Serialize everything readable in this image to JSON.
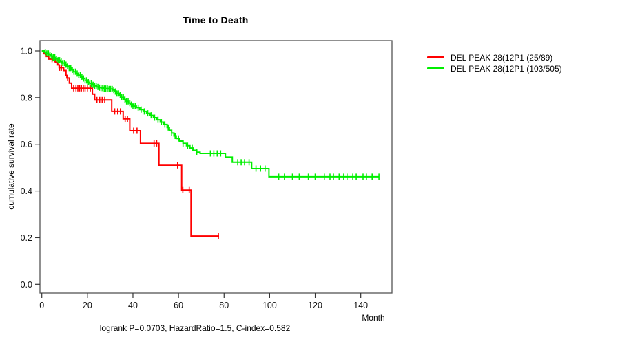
{
  "chart_data": {
    "type": "line",
    "subtype": "kaplan-meier-step",
    "title": "Time to Death",
    "xlabel": "Month",
    "ylabel": "cumulative survival rate",
    "footnote": "logrank P=0.0703, HazardRatio=1.5, C-index=0.582",
    "x_ticks": [
      0,
      20,
      40,
      60,
      80,
      100,
      120,
      140
    ],
    "y_ticks": [
      0.0,
      0.2,
      0.4,
      0.6,
      0.8,
      1.0
    ],
    "xlim": [
      0,
      154
    ],
    "ylim": [
      0.0,
      1.0
    ],
    "grid": false,
    "legend_position": "right-outside",
    "series": [
      {
        "name": "DEL PEAK 28(12P1 (25/89)",
        "color": "#ff0000",
        "events_over_n": "25/89",
        "end_month": 77.8,
        "points": [
          [
            0,
            1.0
          ],
          [
            1,
            0.988
          ],
          [
            2,
            0.976
          ],
          [
            3,
            0.965
          ],
          [
            6,
            0.952
          ],
          [
            7,
            0.94
          ],
          [
            7.6,
            0.928
          ],
          [
            9.6,
            0.916
          ],
          [
            10.6,
            0.895
          ],
          [
            11,
            0.884
          ],
          [
            12.1,
            0.862
          ],
          [
            13.1,
            0.84
          ],
          [
            22.2,
            0.815
          ],
          [
            23.2,
            0.79
          ],
          [
            30.7,
            0.741
          ],
          [
            35.7,
            0.709
          ],
          [
            38.6,
            0.658
          ],
          [
            43.3,
            0.604
          ],
          [
            51.4,
            0.51
          ],
          [
            61.4,
            0.404
          ],
          [
            65.5,
            0.207
          ]
        ],
        "censor_months": [
          4.5,
          5.5,
          7.8,
          8.6,
          11.3,
          14,
          15,
          15.8,
          16.6,
          17.4,
          18.2,
          19,
          20,
          21.3,
          24.2,
          25.4,
          26.5,
          27.6,
          32,
          33.3,
          34.5,
          36.6,
          37.6,
          40.3,
          41.8,
          49.3,
          50.4,
          59.6,
          61.9,
          64.7,
          77.5
        ]
      },
      {
        "name": "DEL PEAK 28(12P1 (103/505)",
        "color": "#00ee00",
        "events_over_n": "103/505",
        "end_month": 148,
        "points": [
          [
            0,
            1.0
          ],
          [
            1,
            0.995
          ],
          [
            2,
            0.989
          ],
          [
            3,
            0.983
          ],
          [
            4,
            0.978
          ],
          [
            5,
            0.972
          ],
          [
            6,
            0.966
          ],
          [
            7,
            0.96
          ],
          [
            8,
            0.954
          ],
          [
            9,
            0.948
          ],
          [
            10,
            0.941
          ],
          [
            11,
            0.934
          ],
          [
            12,
            0.927
          ],
          [
            13,
            0.919
          ],
          [
            14,
            0.911
          ],
          [
            15,
            0.903
          ],
          [
            16,
            0.896
          ],
          [
            17,
            0.889
          ],
          [
            18,
            0.882
          ],
          [
            19,
            0.874
          ],
          [
            20,
            0.866
          ],
          [
            21,
            0.86
          ],
          [
            22,
            0.855
          ],
          [
            23,
            0.85
          ],
          [
            24,
            0.846
          ],
          [
            25,
            0.843
          ],
          [
            26,
            0.841
          ],
          [
            27,
            0.839
          ],
          [
            29,
            0.837
          ],
          [
            31,
            0.833
          ],
          [
            32,
            0.826
          ],
          [
            33,
            0.818
          ],
          [
            34,
            0.81
          ],
          [
            35,
            0.801
          ],
          [
            36,
            0.792
          ],
          [
            37,
            0.784
          ],
          [
            38,
            0.777
          ],
          [
            39,
            0.77
          ],
          [
            40,
            0.764
          ],
          [
            41.5,
            0.757
          ],
          [
            43,
            0.749
          ],
          [
            44.5,
            0.741
          ],
          [
            46,
            0.733
          ],
          [
            47.5,
            0.724
          ],
          [
            49,
            0.714
          ],
          [
            50.5,
            0.705
          ],
          [
            52,
            0.695
          ],
          [
            53.5,
            0.685
          ],
          [
            55,
            0.672
          ],
          [
            56,
            0.66
          ],
          [
            57,
            0.648
          ],
          [
            58,
            0.636
          ],
          [
            59,
            0.625
          ],
          [
            60.5,
            0.614
          ],
          [
            62,
            0.604
          ],
          [
            63.5,
            0.594
          ],
          [
            65,
            0.584
          ],
          [
            66.5,
            0.574
          ],
          [
            68,
            0.566
          ],
          [
            69.5,
            0.561
          ],
          [
            80.6,
            0.545
          ],
          [
            83.6,
            0.523
          ],
          [
            92.1,
            0.496
          ],
          [
            99.7,
            0.461
          ]
        ],
        "censor_months": [
          1.5,
          2.2,
          2.9,
          3.6,
          4.3,
          5,
          5.7,
          6.4,
          7.1,
          7.8,
          8.5,
          9.2,
          9.9,
          10.6,
          11.3,
          12,
          12.7,
          13.4,
          14.1,
          14.8,
          15.5,
          16.2,
          16.9,
          17.6,
          18.3,
          19,
          19.7,
          20.4,
          21.1,
          21.8,
          22.5,
          23.2,
          23.9,
          24.6,
          25.3,
          26,
          26.7,
          27.4,
          28.1,
          28.8,
          29.5,
          30.2,
          30.9,
          31.6,
          32.3,
          33,
          33.7,
          34.4,
          35.1,
          35.8,
          36.5,
          37.2,
          37.9,
          38.6,
          39.3,
          40,
          41,
          42.3,
          43.6,
          45,
          46.5,
          48,
          49.5,
          51,
          52.5,
          54,
          55.5,
          57,
          58.5,
          60,
          62,
          64,
          66,
          68,
          74,
          75.5,
          77,
          78.5,
          86,
          87.5,
          89,
          91,
          94,
          96,
          98,
          104,
          106.5,
          110,
          113,
          117,
          120,
          124,
          126.5,
          128,
          130.5,
          132.5,
          134,
          136.5,
          138,
          141,
          142.5,
          145,
          148
        ]
      }
    ]
  }
}
